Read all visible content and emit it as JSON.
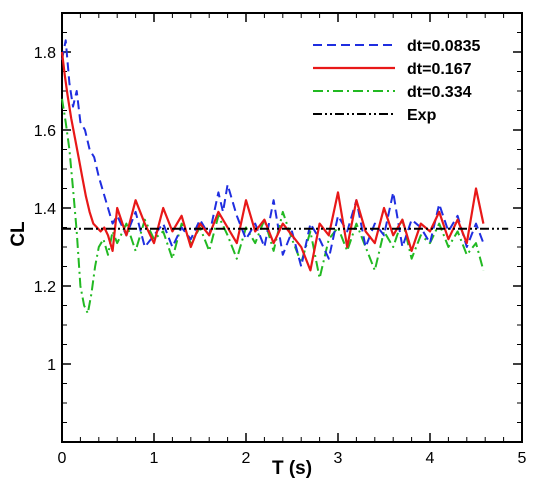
{
  "chart_data": {
    "type": "line",
    "xlabel": "T (s)",
    "ylabel": "CL",
    "xlim": [
      0,
      5
    ],
    "ylim": [
      0.8,
      1.9
    ],
    "x_ticks": [
      0,
      1,
      2,
      3,
      4,
      5
    ],
    "y_ticks": [
      1,
      1.2,
      1.4,
      1.6,
      1.8
    ],
    "x_tick_labels": [
      "0",
      "1",
      "2",
      "3",
      "4",
      "5"
    ],
    "y_tick_labels": [
      "1",
      "1.2",
      "1.4",
      "1.6",
      "1.8"
    ],
    "grid": false,
    "legend_position": "top-right",
    "series": [
      {
        "name": "dt=0.0835",
        "color": "#1f2ee0",
        "style": "dashed",
        "x": [
          0.0,
          0.04,
          0.08,
          0.12,
          0.16,
          0.2,
          0.25,
          0.3,
          0.35,
          0.4,
          0.45,
          0.5,
          0.55,
          0.6,
          0.7,
          0.8,
          0.9,
          1.0,
          1.1,
          1.2,
          1.3,
          1.4,
          1.5,
          1.6,
          1.7,
          1.75,
          1.8,
          1.9,
          2.0,
          2.1,
          2.2,
          2.3,
          2.4,
          2.5,
          2.6,
          2.7,
          2.8,
          2.9,
          3.0,
          3.1,
          3.2,
          3.3,
          3.4,
          3.5,
          3.6,
          3.7,
          3.8,
          3.9,
          4.0,
          4.1,
          4.2,
          4.3,
          4.4,
          4.5,
          4.58
        ],
        "y": [
          1.78,
          1.83,
          1.72,
          1.66,
          1.7,
          1.62,
          1.6,
          1.55,
          1.53,
          1.48,
          1.44,
          1.4,
          1.36,
          1.38,
          1.33,
          1.39,
          1.3,
          1.33,
          1.36,
          1.3,
          1.35,
          1.32,
          1.37,
          1.33,
          1.44,
          1.39,
          1.46,
          1.38,
          1.32,
          1.36,
          1.3,
          1.42,
          1.28,
          1.34,
          1.25,
          1.36,
          1.32,
          1.27,
          1.38,
          1.34,
          1.42,
          1.3,
          1.36,
          1.33,
          1.44,
          1.3,
          1.37,
          1.35,
          1.31,
          1.41,
          1.34,
          1.38,
          1.3,
          1.36,
          1.31
        ]
      },
      {
        "name": "dt=0.167",
        "color": "#e81818",
        "style": "solid",
        "x": [
          0.0,
          0.03,
          0.06,
          0.1,
          0.14,
          0.18,
          0.22,
          0.26,
          0.3,
          0.34,
          0.38,
          0.42,
          0.46,
          0.5,
          0.55,
          0.6,
          0.7,
          0.8,
          0.9,
          1.0,
          1.1,
          1.2,
          1.3,
          1.4,
          1.5,
          1.6,
          1.7,
          1.8,
          1.9,
          2.0,
          2.1,
          2.2,
          2.3,
          2.4,
          2.5,
          2.6,
          2.7,
          2.8,
          2.9,
          3.0,
          3.1,
          3.2,
          3.3,
          3.4,
          3.5,
          3.6,
          3.7,
          3.8,
          3.9,
          4.0,
          4.1,
          4.2,
          4.3,
          4.4,
          4.5,
          4.58
        ],
        "y": [
          1.8,
          1.74,
          1.69,
          1.63,
          1.58,
          1.53,
          1.48,
          1.43,
          1.39,
          1.36,
          1.35,
          1.34,
          1.35,
          1.33,
          1.29,
          1.4,
          1.33,
          1.42,
          1.36,
          1.31,
          1.4,
          1.34,
          1.38,
          1.3,
          1.36,
          1.33,
          1.39,
          1.35,
          1.31,
          1.42,
          1.34,
          1.37,
          1.31,
          1.36,
          1.33,
          1.3,
          1.24,
          1.36,
          1.33,
          1.44,
          1.3,
          1.42,
          1.34,
          1.31,
          1.4,
          1.33,
          1.37,
          1.29,
          1.36,
          1.34,
          1.39,
          1.32,
          1.37,
          1.31,
          1.45,
          1.36
        ]
      },
      {
        "name": "dt=0.334",
        "color": "#22b922",
        "style": "dashdot",
        "x": [
          0.0,
          0.04,
          0.08,
          0.12,
          0.16,
          0.2,
          0.24,
          0.28,
          0.32,
          0.36,
          0.4,
          0.45,
          0.5,
          0.55,
          0.6,
          0.7,
          0.8,
          0.9,
          1.0,
          1.1,
          1.2,
          1.3,
          1.4,
          1.5,
          1.6,
          1.7,
          1.8,
          1.9,
          2.0,
          2.1,
          2.2,
          2.3,
          2.4,
          2.5,
          2.6,
          2.7,
          2.8,
          2.9,
          3.0,
          3.1,
          3.2,
          3.3,
          3.4,
          3.5,
          3.6,
          3.7,
          3.8,
          3.9,
          4.0,
          4.1,
          4.2,
          4.3,
          4.4,
          4.5,
          4.58
        ],
        "y": [
          1.68,
          1.62,
          1.55,
          1.45,
          1.34,
          1.2,
          1.15,
          1.13,
          1.18,
          1.25,
          1.3,
          1.32,
          1.28,
          1.34,
          1.31,
          1.36,
          1.29,
          1.37,
          1.32,
          1.34,
          1.27,
          1.36,
          1.31,
          1.35,
          1.29,
          1.38,
          1.33,
          1.27,
          1.35,
          1.31,
          1.37,
          1.29,
          1.39,
          1.32,
          1.26,
          1.34,
          1.22,
          1.32,
          1.35,
          1.29,
          1.36,
          1.3,
          1.24,
          1.34,
          1.3,
          1.37,
          1.27,
          1.33,
          1.31,
          1.36,
          1.3,
          1.34,
          1.28,
          1.31,
          1.24
        ]
      },
      {
        "name": "Exp",
        "color": "#000000",
        "style": "dashdotdot",
        "x": [
          0,
          4.85
        ],
        "y": [
          1.347,
          1.347
        ]
      }
    ]
  }
}
